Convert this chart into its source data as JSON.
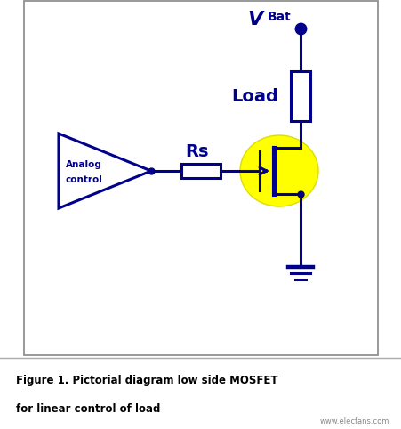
{
  "bg_color": "#ffffff",
  "circuit_color": "#00008B",
  "mosfet_highlight": "#FFFF00",
  "title_line1": "Figure 1. Pictorial diagram low side MOSFET",
  "title_line2": "for linear control of load",
  "vbat_label_V": "V",
  "vbat_label_Bat": "Bat",
  "load_label": "Load",
  "rs_label": "Rs",
  "analog_label1": "Analog",
  "analog_label2": "control",
  "watermark": "www.elecfans.com",
  "fig_width": 4.52,
  "fig_height": 4.82,
  "dpi": 100,
  "border_color": "#888888",
  "caption_border_color": "#aaaaaa"
}
